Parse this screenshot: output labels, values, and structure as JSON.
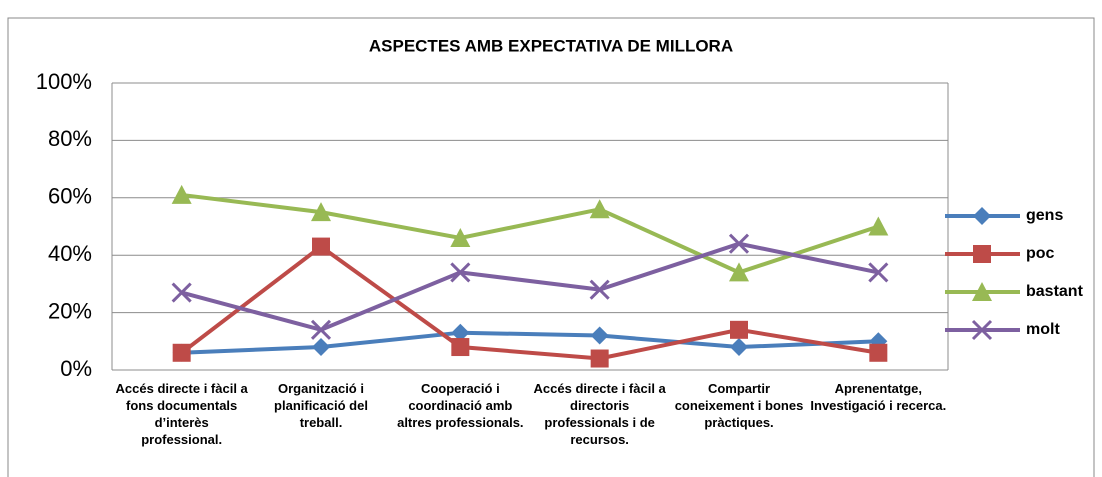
{
  "chart_data": {
    "type": "line",
    "title": "ASPECTES AMB EXPECTATIVA DE MILLORA",
    "categories": [
      "Accés directe i fàcil a fons documentals d’interès professional.",
      "Organització i planificació del treball.",
      "Cooperació i coordinació amb altres professionals.",
      "Accés directe i fàcil a directoris professionals i de recursos.",
      "Compartir coneixement i bones pràctiques.",
      "Aprenentatge, Investigació i recerca."
    ],
    "series": [
      {
        "name": "gens",
        "color": "#4a7ebb",
        "marker": "diamond",
        "values": [
          6,
          8,
          13,
          12,
          8,
          10
        ]
      },
      {
        "name": "poc",
        "color": "#be4b48",
        "marker": "square",
        "values": [
          6,
          43,
          8,
          4,
          14,
          6
        ]
      },
      {
        "name": "bastant",
        "color": "#98b954",
        "marker": "triangle",
        "values": [
          61,
          55,
          46,
          56,
          34,
          50
        ]
      },
      {
        "name": "molt",
        "color": "#7d60a0",
        "marker": "x",
        "values": [
          27,
          14,
          34,
          28,
          44,
          34
        ]
      }
    ],
    "ylim": [
      0,
      100
    ],
    "yticks": [
      {
        "value": 0,
        "label": "0%"
      },
      {
        "value": 20,
        "label": "20%"
      },
      {
        "value": 40,
        "label": "40%"
      },
      {
        "value": 60,
        "label": "60%"
      },
      {
        "value": 80,
        "label": "80%"
      },
      {
        "value": 100,
        "label": "100%"
      }
    ],
    "grid": true,
    "legend": "right"
  }
}
